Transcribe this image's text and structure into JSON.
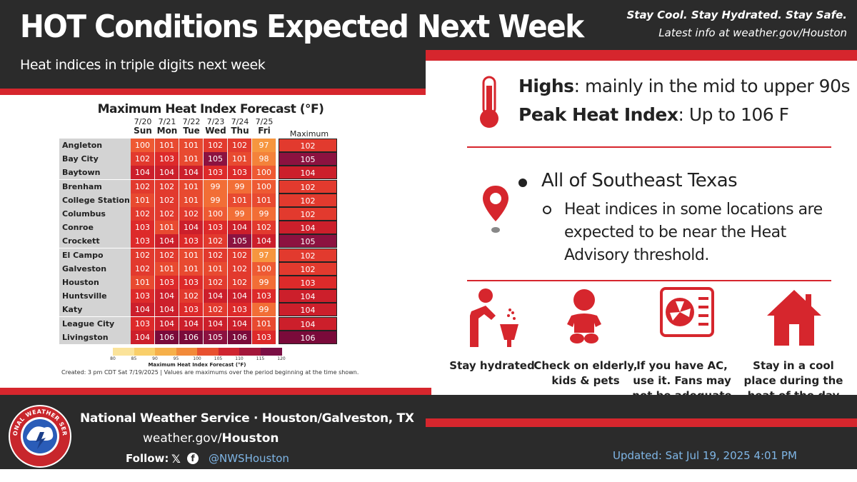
{
  "header": {
    "title": "HOT Conditions Expected Next Week",
    "subtitle": "Heat indices in triple digits next week",
    "tagline": "Stay Cool. Stay Hydrated. Stay Safe.",
    "latest_info": "Latest info at weather.gov/Houston"
  },
  "chart_data": {
    "type": "table",
    "title": "Maximum Heat Index Forecast (°F)",
    "dates": [
      "7/20",
      "7/21",
      "7/22",
      "7/23",
      "7/24",
      "7/25"
    ],
    "days": [
      "Sun",
      "Mon",
      "Tue",
      "Wed",
      "Thu",
      "Fri"
    ],
    "max_label": "Maximum",
    "rows": [
      {
        "city": "Angleton",
        "values": [
          100,
          101,
          101,
          102,
          102,
          97
        ],
        "max": 102
      },
      {
        "city": "Bay City",
        "values": [
          102,
          103,
          101,
          105,
          101,
          98
        ],
        "max": 105
      },
      {
        "city": "Baytown",
        "values": [
          104,
          104,
          104,
          103,
          103,
          100
        ],
        "max": 104
      },
      {
        "city": "Brenham",
        "values": [
          102,
          102,
          101,
          99,
          99,
          100
        ],
        "max": 102
      },
      {
        "city": "College Station",
        "values": [
          101,
          102,
          101,
          99,
          101,
          101
        ],
        "max": 102
      },
      {
        "city": "Columbus",
        "values": [
          102,
          102,
          102,
          100,
          99,
          99
        ],
        "max": 102
      },
      {
        "city": "Conroe",
        "values": [
          103,
          101,
          104,
          103,
          104,
          102
        ],
        "max": 104
      },
      {
        "city": "Crockett",
        "values": [
          103,
          104,
          103,
          102,
          105,
          104
        ],
        "max": 105
      },
      {
        "city": "El Campo",
        "values": [
          102,
          102,
          101,
          102,
          102,
          97
        ],
        "max": 102
      },
      {
        "city": "Galveston",
        "values": [
          102,
          101,
          101,
          101,
          102,
          100
        ],
        "max": 102
      },
      {
        "city": "Houston",
        "values": [
          101,
          103,
          103,
          102,
          102,
          99
        ],
        "max": 103
      },
      {
        "city": "Huntsville",
        "values": [
          103,
          104,
          102,
          104,
          104,
          103
        ],
        "max": 104
      },
      {
        "city": "Katy",
        "values": [
          104,
          104,
          103,
          102,
          103,
          99
        ],
        "max": 104
      },
      {
        "city": "League City",
        "values": [
          103,
          104,
          104,
          104,
          104,
          101
        ],
        "max": 104
      },
      {
        "city": "Livingston",
        "values": [
          104,
          106,
          106,
          105,
          106,
          103
        ],
        "max": 106
      }
    ],
    "legend": {
      "title": "Maximum Heat Index Forecast (°F)",
      "ticks": [
        80,
        85,
        90,
        95,
        100,
        105,
        110,
        115,
        120
      ]
    },
    "footnote": "Created: 3 pm CDT Sat 7/19/2025  |  Values are maximums over the period beginning at the time shown."
  },
  "summary": {
    "highs_label": "Highs",
    "highs_text": ": mainly in the mid to upper 90s",
    "peak_label": "Peak Heat Index",
    "peak_text": ": Up to 106 F",
    "region": "All of Southeast Texas",
    "detail": "Heat indices in some locations are expected to be near the Heat Advisory threshold."
  },
  "tips": [
    {
      "icon": "water-fountain-icon",
      "text": "Stay hydrated"
    },
    {
      "icon": "baby-icon",
      "text": "Check on elderly, kids & pets"
    },
    {
      "icon": "air-conditioner-icon",
      "text": "If you have AC, use it. Fans may not be adequate"
    },
    {
      "icon": "house-icon",
      "text": "Stay in a cool place during the heat of the day"
    }
  ],
  "footer": {
    "office": "National Weather Service · Houston/Galveston, TX",
    "url_prefix": "weather.gov/",
    "url_bold": "Houston",
    "follow_label": "Follow:",
    "handle": "@NWSHouston",
    "updated": "Updated: Sat Jul 19, 2025 4:01 PM",
    "logo_text": "NATIONAL WEATHER SERVICE"
  },
  "colors": {
    "accent_red": "#d6262d",
    "dark_band": "#2b2b2b",
    "link_blue": "#7fb6e6"
  }
}
